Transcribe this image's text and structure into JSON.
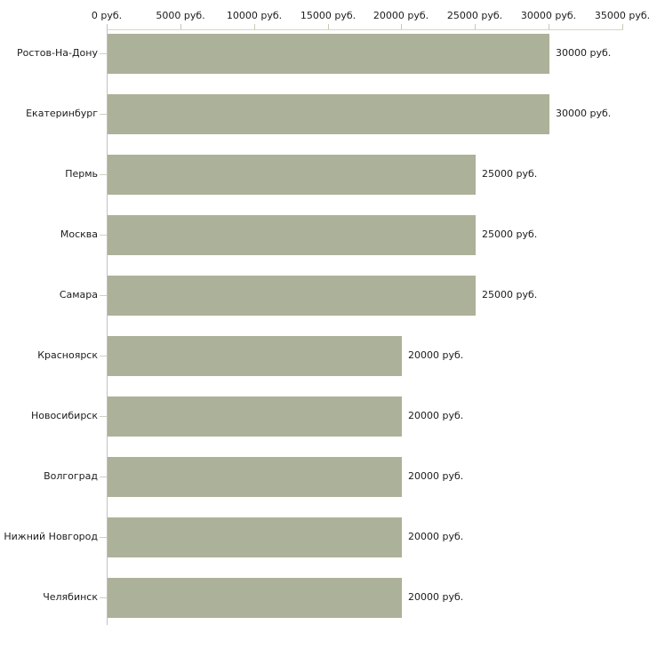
{
  "chart_data": {
    "type": "bar",
    "orientation": "horizontal",
    "title": "",
    "xlabel": "",
    "ylabel": "",
    "xlim": [
      0,
      35000
    ],
    "grid": false,
    "legend": "none",
    "bar_color": "#acb199",
    "axis_line_color": "#d6d6c2",
    "tick_color": "#c9c9b2",
    "text_color": "#1c1c1c",
    "categories": [
      "Ростов-На-Дону",
      "Екатеринбург",
      "Пермь",
      "Москва",
      "Самара",
      "Красноярск",
      "Новосибирск",
      "Волгоград",
      "Нижний Новгород",
      "Челябинск"
    ],
    "values": [
      30000,
      30000,
      25000,
      25000,
      25000,
      20000,
      20000,
      20000,
      20000,
      20000
    ],
    "value_labels": [
      "30000 руб.",
      "30000 руб.",
      "25000 руб.",
      "25000 руб.",
      "25000 руб.",
      "20000 руб.",
      "20000 руб.",
      "20000 руб.",
      "20000 руб.",
      "20000 руб."
    ],
    "x_ticks": [
      0,
      5000,
      10000,
      15000,
      20000,
      25000,
      30000,
      35000
    ],
    "x_tick_labels": [
      "0 руб.",
      "5000 руб.",
      "10000 руб.",
      "15000 руб.",
      "20000 руб.",
      "25000 руб.",
      "30000 руб.",
      "35000 руб."
    ]
  }
}
